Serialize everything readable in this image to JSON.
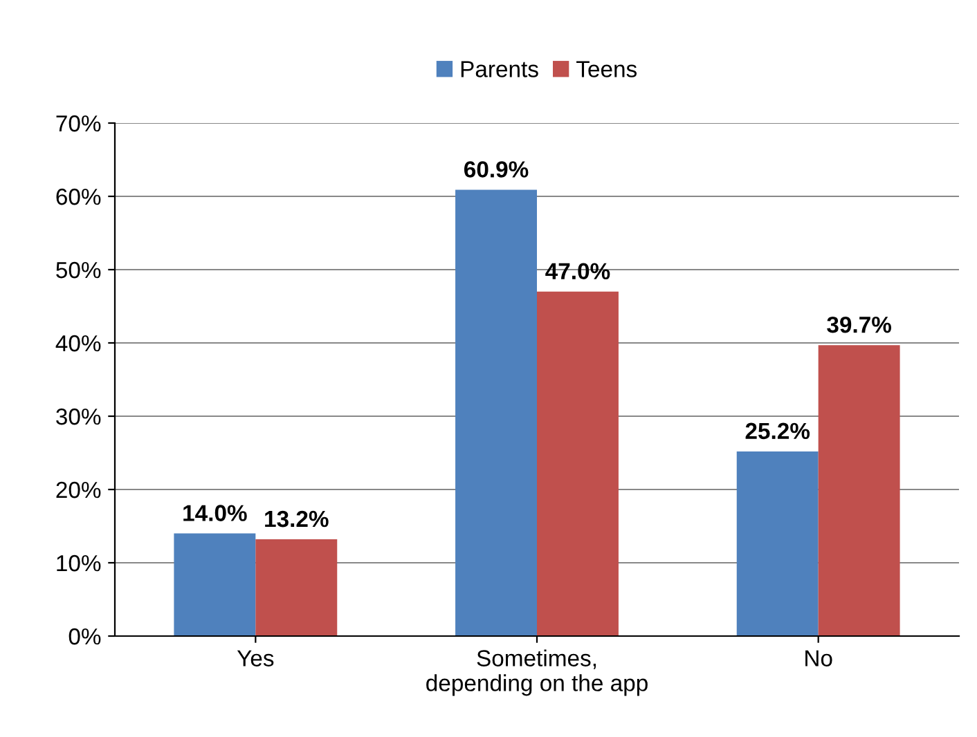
{
  "chart_data": {
    "type": "bar",
    "categories": [
      "Yes",
      "Sometimes,\ndepending on the app",
      "No"
    ],
    "series": [
      {
        "name": "Parents",
        "color": "#4f81bd",
        "values": [
          14.0,
          60.9,
          25.2
        ],
        "value_labels": [
          "14.0%",
          "60.9%",
          "25.2%"
        ]
      },
      {
        "name": "Teens",
        "color": "#c0504d",
        "values": [
          13.2,
          47.0,
          39.7
        ],
        "value_labels": [
          "13.2%",
          "47.0%",
          "39.7%"
        ]
      }
    ],
    "ylim": [
      0,
      70
    ],
    "yticks": [
      {
        "value": 0,
        "label": "0%"
      },
      {
        "value": 10,
        "label": "10%"
      },
      {
        "value": 20,
        "label": "20%"
      },
      {
        "value": 30,
        "label": "30%"
      },
      {
        "value": 40,
        "label": "40%"
      },
      {
        "value": 50,
        "label": "50%"
      },
      {
        "value": 60,
        "label": "60%"
      },
      {
        "value": 70,
        "label": "70%"
      }
    ],
    "grid": "y",
    "legend": "top"
  }
}
